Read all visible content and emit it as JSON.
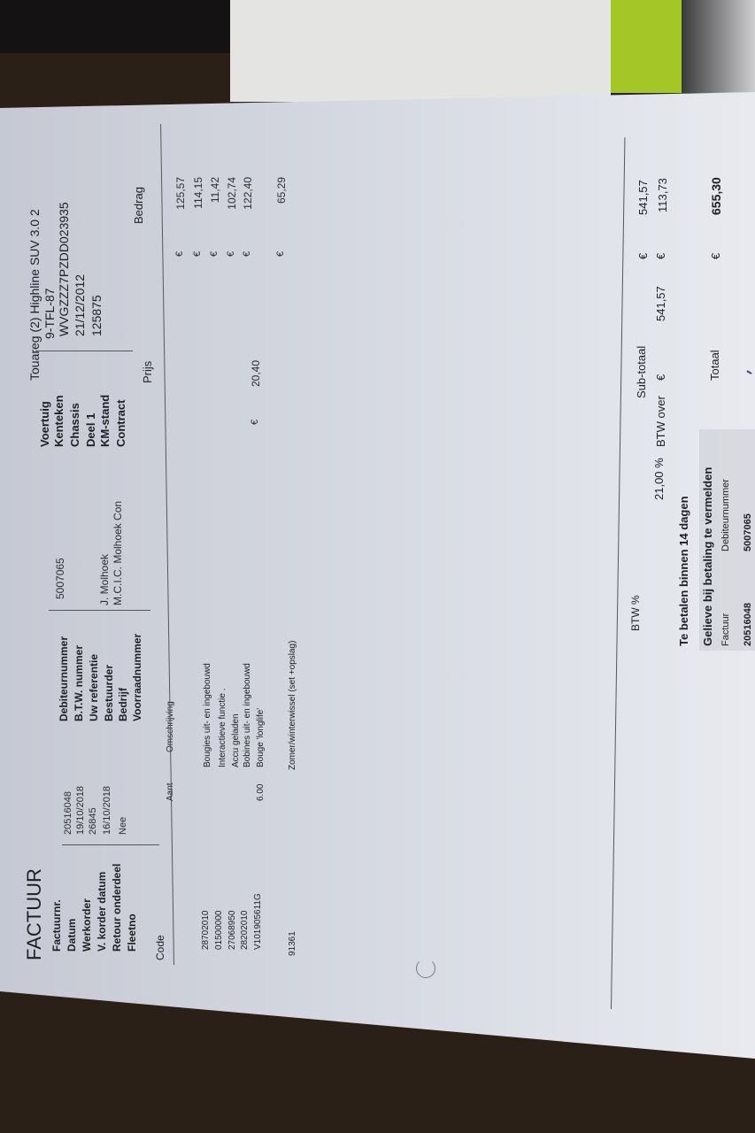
{
  "colors": {
    "paper": "#d8dbe3",
    "background": "#2a2018",
    "accent_green": "#a4c626"
  },
  "invoice": {
    "title": "FACTUUR",
    "left_fields": [
      {
        "label": "Factuurnr.",
        "value": "20516048"
      },
      {
        "label": "Datum",
        "value": "19/10/2018"
      },
      {
        "label": "Werkorder",
        "value": "26845"
      },
      {
        "label": "V. korder datum",
        "value": "16/10/2018"
      },
      {
        "label": "Retour onderdeel",
        "value": "Nee"
      },
      {
        "label": "Fleetno",
        "value": ""
      }
    ],
    "middle_fields": [
      {
        "label": "Debiteurnummer",
        "value": "5007065"
      },
      {
        "label": "B.T.W. nummer",
        "value": ""
      },
      {
        "label": "Uw referentie",
        "value": ""
      },
      {
        "label": "Bestuurder",
        "value": "J. Molhoek"
      },
      {
        "label": "Bedrijf",
        "value": "M.C.I.C. Molhoek Con"
      },
      {
        "label": "Voorraadnummer",
        "value": ""
      }
    ],
    "vehicle_fields": [
      {
        "label": "Voertuig",
        "value": "Touareg (2) Highline SUV 3.0 2"
      },
      {
        "label": "Kenteken",
        "value": "9-TFL-87"
      },
      {
        "label": "Chassis",
        "value": "WVGZZZ7PZDD023935"
      },
      {
        "label": "Deel 1",
        "value": "21/12/2012"
      },
      {
        "label": "KM-stand",
        "value": "125875"
      },
      {
        "label": "Contract",
        "value": ""
      }
    ],
    "columns": {
      "code": "Code",
      "qty": "Aant",
      "description": "Omschrijving",
      "price": "Prijs",
      "amount": "Bedrag"
    },
    "currency": "€",
    "items": [
      {
        "code": "28702010",
        "qty": "",
        "description": "Bougies uit- en ingebouwd",
        "price": "",
        "amount": "125,57"
      },
      {
        "code": "01500000",
        "qty": "",
        "description": "Interactieve functie .",
        "price": "",
        "amount": "114,15"
      },
      {
        "code": "27068950",
        "qty": "",
        "description": "Accu geladen",
        "price": "",
        "amount": "11,42"
      },
      {
        "code": "28202010",
        "qty": "",
        "description": "Bobines uit- en ingebouwd",
        "price": "",
        "amount": "102,74"
      },
      {
        "code": "V101905611G",
        "qty": "6.00",
        "description": "Bouge 'longlife'",
        "price": "20,40",
        "amount": "122,40"
      },
      {
        "code": "91361",
        "qty": "",
        "description": "Zomer/winterwissel (set +opslag)",
        "price": "",
        "amount": "65,29"
      }
    ],
    "totals": {
      "btw_header": "BTW %",
      "subtotal_label": "Sub-totaal",
      "subtotal": "541,57",
      "btw_rate": "21,00 %",
      "btw_over_label": "BTW over",
      "btw_base": "541,57",
      "btw_amount": "113,73",
      "total_label": "Totaal",
      "total": "655,30"
    },
    "footer": {
      "payment_terms": "Te betalen binnen 14 dagen",
      "mention": "Gelieve bij betaling te vermelden",
      "ref_labels": [
        "Factuur",
        "Debiteurnummer"
      ],
      "ref_values": [
        "20516048",
        "5007065"
      ]
    }
  }
}
